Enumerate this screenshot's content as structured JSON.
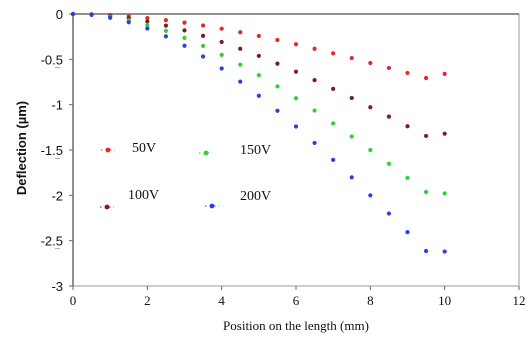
{
  "chart_data": {
    "type": "scatter",
    "xlabel": "Position on the length (mm)",
    "ylabel": "Deflection (µm)",
    "xlim": [
      0,
      12
    ],
    "ylim": [
      -3,
      0
    ],
    "x_ticks": [
      "0",
      "2",
      "4",
      "6",
      "8",
      "10",
      "12"
    ],
    "y_ticks": [
      "0",
      "-0.5",
      "-1",
      "-1.5",
      "-2",
      "-2.5",
      "-3"
    ],
    "grid": false,
    "legend_position": "center-left",
    "x": [
      0,
      0.5,
      1,
      1.5,
      2,
      2.5,
      3,
      3.5,
      4,
      4.5,
      5,
      5.5,
      6,
      6.5,
      7,
      7.5,
      8,
      8.5,
      9,
      9.5,
      10
    ],
    "series": [
      {
        "name": "50V",
        "color": "#e8262a",
        "values": [
          0,
          -0.003,
          -0.011,
          -0.025,
          -0.045,
          -0.068,
          -0.095,
          -0.127,
          -0.162,
          -0.201,
          -0.242,
          -0.287,
          -0.334,
          -0.383,
          -0.434,
          -0.486,
          -0.54,
          -0.595,
          -0.65,
          -0.706,
          -0.66
        ]
      },
      {
        "name": "100V",
        "color": "#7a1f1f",
        "values": [
          0,
          -0.005,
          -0.021,
          -0.047,
          -0.083,
          -0.128,
          -0.181,
          -0.241,
          -0.309,
          -0.383,
          -0.462,
          -0.547,
          -0.636,
          -0.729,
          -0.826,
          -0.926,
          -1.028,
          -1.132,
          -1.238,
          -1.345,
          -1.32
        ]
      },
      {
        "name": "150V",
        "color": "#2fd22f",
        "values": [
          0,
          -0.008,
          -0.031,
          -0.069,
          -0.121,
          -0.186,
          -0.263,
          -0.352,
          -0.451,
          -0.559,
          -0.675,
          -0.799,
          -0.929,
          -1.065,
          -1.206,
          -1.351,
          -1.5,
          -1.652,
          -1.807,
          -1.963,
          -1.98
        ]
      },
      {
        "name": "200V",
        "color": "#2b3fe0",
        "values": [
          0,
          -0.01,
          -0.041,
          -0.091,
          -0.16,
          -0.247,
          -0.35,
          -0.469,
          -0.601,
          -0.746,
          -0.902,
          -1.067,
          -1.241,
          -1.422,
          -1.609,
          -1.802,
          -2.0,
          -2.201,
          -2.406,
          -2.614,
          -2.62
        ]
      }
    ],
    "stray_marks": [
      "−",
      "−",
      "−",
      "−"
    ]
  }
}
